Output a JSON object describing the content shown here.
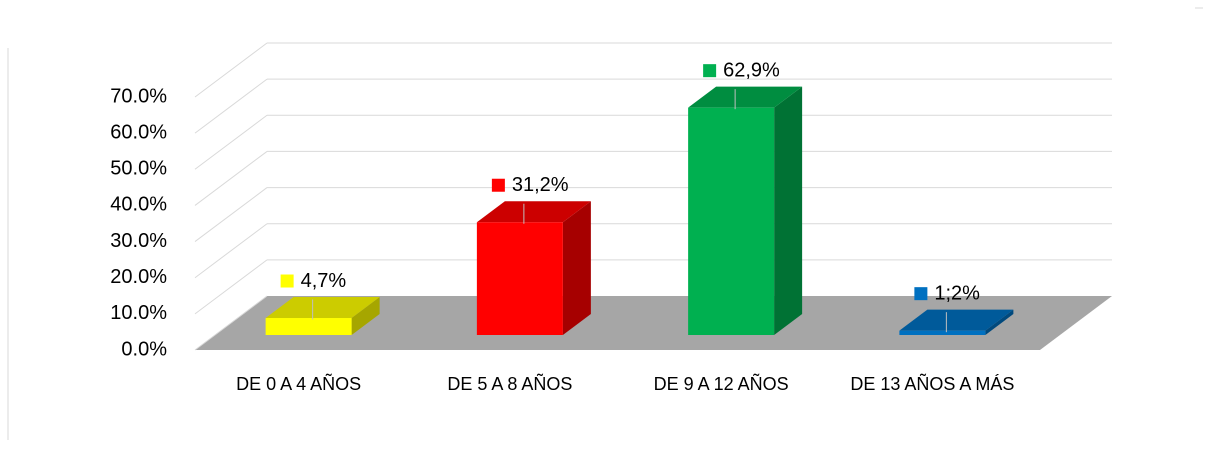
{
  "chart_data": {
    "type": "bar3d",
    "categories": [
      "DE 0  A 4 AÑOS",
      "DE 5 A 8 AÑOS",
      "DE 9 A 12 AÑOS",
      "DE 13 AÑOS A MÁS"
    ],
    "values": [
      4.7,
      31.2,
      62.9,
      1.2
    ],
    "value_labels": [
      "4,7%",
      "31,2%",
      "62,9%",
      "1;2%"
    ],
    "colors": [
      "#ffff00",
      "#ff0000",
      "#00b050",
      "#0070c0"
    ],
    "ylim": [
      0,
      70
    ],
    "yticks": [
      {
        "value": 0,
        "label": "0.0%"
      },
      {
        "value": 10,
        "label": "10.0%"
      },
      {
        "value": 20,
        "label": "20.0%"
      },
      {
        "value": 30,
        "label": "30.0%"
      },
      {
        "value": 40,
        "label": "40.0%"
      },
      {
        "value": 50,
        "label": "50.0%"
      },
      {
        "value": 60,
        "label": "60.0%"
      },
      {
        "value": 70,
        "label": "70.0%"
      }
    ],
    "grid": true
  }
}
